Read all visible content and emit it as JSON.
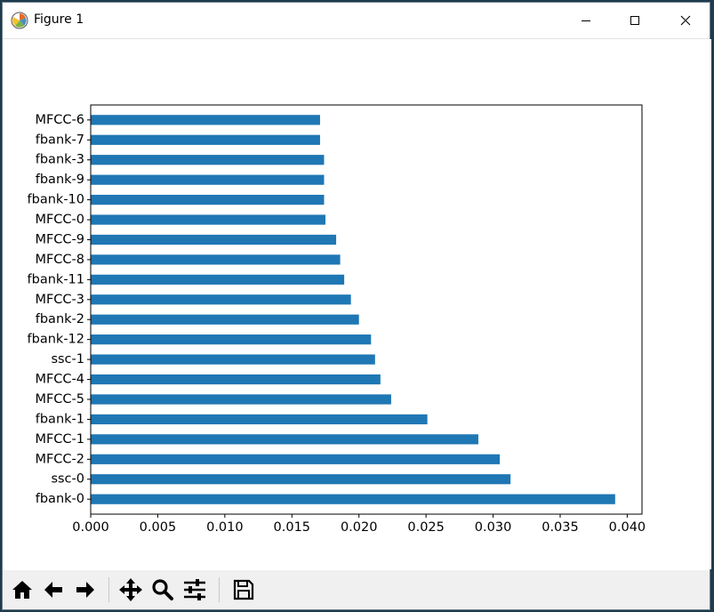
{
  "window": {
    "title": "Figure 1"
  },
  "toolbar": {
    "buttons": [
      "home-icon",
      "back-icon",
      "forward-icon",
      "pan-icon",
      "zoom-icon",
      "configure-subplots-icon",
      "save-icon"
    ]
  },
  "chart_data": {
    "type": "bar",
    "orientation": "horizontal",
    "categories": [
      "fbank-0",
      "ssc-0",
      "MFCC-2",
      "MFCC-1",
      "fbank-1",
      "MFCC-5",
      "MFCC-4",
      "ssc-1",
      "fbank-12",
      "fbank-2",
      "MFCC-3",
      "fbank-11",
      "MFCC-8",
      "MFCC-9",
      "MFCC-0",
      "fbank-10",
      "fbank-9",
      "fbank-3",
      "fbank-7",
      "MFCC-6"
    ],
    "values": [
      0.0391,
      0.0313,
      0.0305,
      0.0289,
      0.0251,
      0.0224,
      0.0216,
      0.0212,
      0.0209,
      0.02,
      0.0194,
      0.0189,
      0.0186,
      0.0183,
      0.0175,
      0.0174,
      0.0174,
      0.0174,
      0.0171,
      0.0171
    ],
    "xlim": [
      0.0,
      0.0411
    ],
    "xticks": [
      "0.000",
      "0.005",
      "0.010",
      "0.015",
      "0.020",
      "0.025",
      "0.030",
      "0.035",
      "0.040"
    ],
    "xtick_values": [
      0.0,
      0.005,
      0.01,
      0.015,
      0.02,
      0.025,
      0.03,
      0.035,
      0.04
    ],
    "bar_color": "#1f77b4",
    "grid": false,
    "legend": false
  }
}
